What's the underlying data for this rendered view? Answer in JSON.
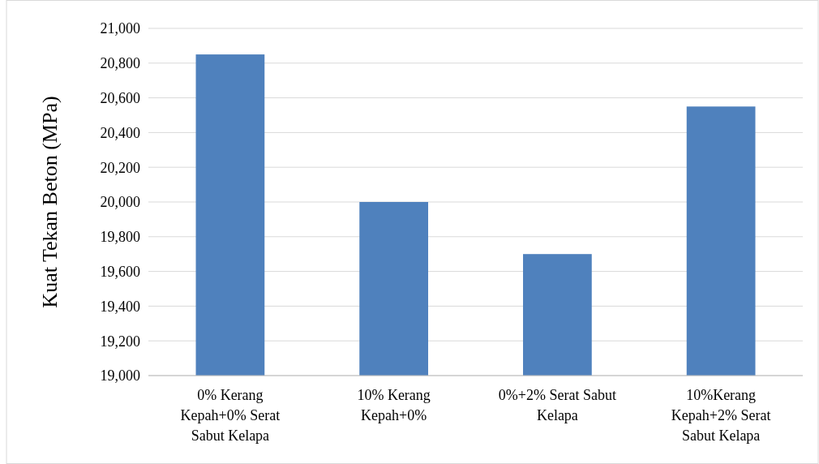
{
  "chart_data": {
    "type": "bar",
    "ylabel": "Kuat Tekan Beton (MPa)",
    "categories": [
      "0% Kerang Kepah+0% Serat Sabut Kelapa",
      "10% Kerang Kepah+0%",
      "0%+2% Serat Sabut Kelapa",
      "10%Kerang Kepah+2% Serat Sabut Kelapa"
    ],
    "values": [
      20850,
      20000,
      19700,
      20550
    ],
    "color": "#4f81bd",
    "ylim": [
      19000,
      21000
    ],
    "yticks": [
      {
        "value": 19000,
        "label": "19,000"
      },
      {
        "value": 19200,
        "label": "19,200"
      },
      {
        "value": 19400,
        "label": "19,400"
      },
      {
        "value": 19600,
        "label": "19,600"
      },
      {
        "value": 19800,
        "label": "19,800"
      },
      {
        "value": 20000,
        "label": "20,000"
      },
      {
        "value": 20200,
        "label": "20,200"
      },
      {
        "value": 20400,
        "label": "20,400"
      },
      {
        "value": 20600,
        "label": "20,600"
      },
      {
        "value": 20800,
        "label": "20,800"
      },
      {
        "value": 21000,
        "label": "21,000"
      }
    ],
    "grid": "y"
  }
}
